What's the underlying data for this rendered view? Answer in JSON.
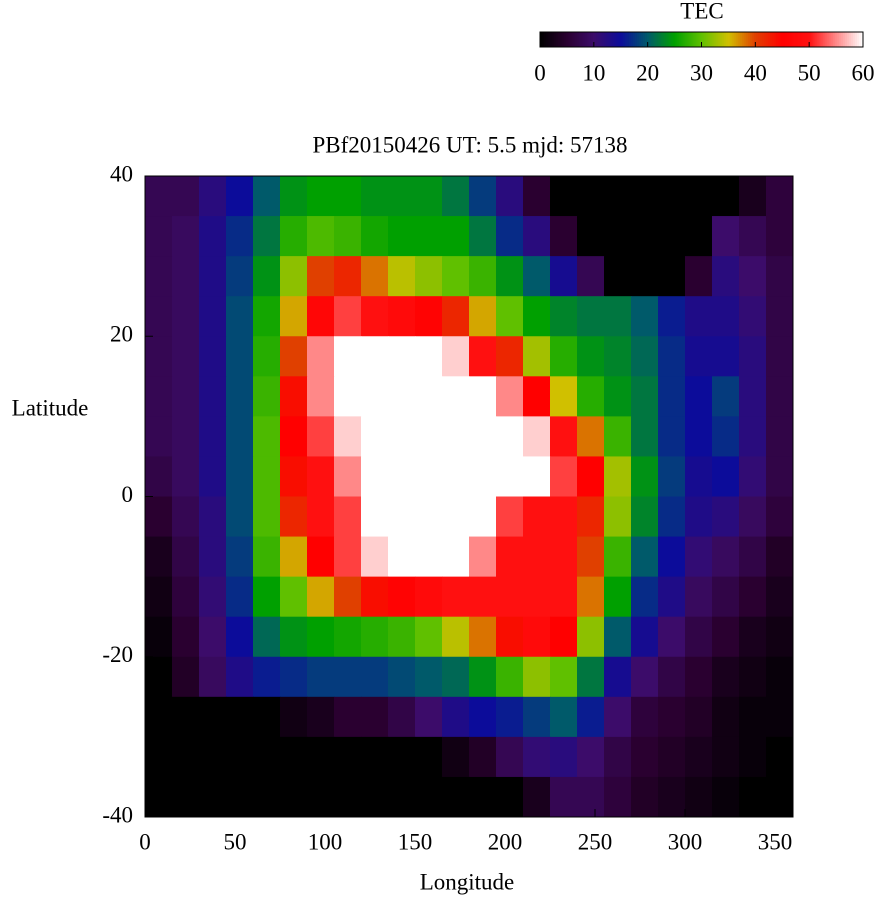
{
  "chart_data": {
    "type": "heatmap",
    "title": "PBf20150426  UT: 5.5  mjd: 57138",
    "x_label": "Longitude",
    "y_label": "Latitude",
    "colorbar_label": "TEC",
    "x_edges": [
      0,
      15,
      30,
      45,
      60,
      75,
      90,
      105,
      120,
      135,
      150,
      165,
      180,
      195,
      210,
      225,
      240,
      255,
      270,
      285,
      300,
      315,
      330,
      345,
      360
    ],
    "y_edges": [
      40,
      35,
      30,
      25,
      20,
      15,
      10,
      5,
      0,
      -5,
      -10,
      -15,
      -20,
      -25,
      -30,
      -35,
      -40
    ],
    "xlim": [
      0,
      360
    ],
    "ylim": [
      -40,
      40
    ],
    "xticks": [
      0,
      50,
      100,
      150,
      200,
      250,
      300,
      350
    ],
    "yticks": [
      -40,
      -20,
      0,
      20,
      40
    ],
    "zlim": [
      0,
      60
    ],
    "zticks": [
      0,
      10,
      20,
      30,
      40,
      50,
      60
    ],
    "colormap": [
      "#000000",
      "#2a0030",
      "#3c0c6a",
      "#0c0c9a",
      "#005a6a",
      "#00a000",
      "#60c000",
      "#d0c000",
      "#e04000",
      "#ff0000",
      "#ff1010",
      "#ff8888",
      "#ffffff"
    ],
    "z": [
      [
        8,
        8,
        12,
        15,
        20,
        24,
        25,
        25,
        24,
        24,
        24,
        22,
        18,
        12,
        5,
        0,
        0,
        0,
        0,
        0,
        0,
        0,
        3,
        6
      ],
      [
        8,
        9,
        13,
        17,
        22,
        27,
        29,
        28,
        26,
        25,
        25,
        25,
        22,
        17,
        12,
        5,
        0,
        0,
        0,
        0,
        0,
        10,
        8,
        6
      ],
      [
        8,
        9,
        13,
        18,
        24,
        32,
        40,
        42,
        38,
        34,
        32,
        30,
        28,
        24,
        20,
        14,
        8,
        0,
        0,
        0,
        5,
        12,
        10,
        7
      ],
      [
        8,
        9,
        13,
        19,
        26,
        36,
        47,
        52,
        50,
        48,
        46,
        42,
        36,
        30,
        25,
        23,
        22,
        22,
        20,
        16,
        13,
        13,
        11,
        7
      ],
      [
        8,
        9,
        13,
        19,
        27,
        40,
        55,
        60,
        60,
        60,
        60,
        58,
        50,
        42,
        33,
        27,
        24,
        23,
        21,
        17,
        14,
        14,
        12,
        7
      ],
      [
        8,
        9,
        13,
        19,
        28,
        44,
        55,
        60,
        60,
        60,
        60,
        60,
        60,
        55,
        45,
        35,
        27,
        24,
        22,
        17,
        15,
        18,
        12,
        7
      ],
      [
        8,
        9,
        13,
        19,
        29,
        45,
        52,
        58,
        60,
        60,
        60,
        60,
        60,
        60,
        58,
        50,
        38,
        28,
        22,
        17,
        15,
        17,
        12,
        7
      ],
      [
        7,
        9,
        13,
        19,
        29,
        44,
        50,
        55,
        60,
        60,
        60,
        60,
        60,
        60,
        60,
        52,
        45,
        33,
        24,
        18,
        14,
        15,
        11,
        7
      ],
      [
        5,
        8,
        12,
        19,
        29,
        42,
        50,
        52,
        60,
        60,
        60,
        60,
        60,
        52,
        50,
        50,
        42,
        32,
        23,
        17,
        13,
        12,
        9,
        6
      ],
      [
        3,
        7,
        12,
        18,
        28,
        36,
        45,
        52,
        58,
        60,
        60,
        60,
        55,
        50,
        50,
        50,
        40,
        28,
        20,
        15,
        11,
        9,
        7,
        4
      ],
      [
        2,
        6,
        11,
        17,
        25,
        30,
        36,
        40,
        44,
        46,
        48,
        50,
        50,
        50,
        50,
        50,
        38,
        25,
        17,
        13,
        9,
        7,
        5,
        3
      ],
      [
        1,
        5,
        10,
        15,
        21,
        24,
        25,
        26,
        27,
        28,
        30,
        34,
        38,
        44,
        48,
        45,
        32,
        20,
        14,
        10,
        7,
        5,
        3,
        2
      ],
      [
        0,
        4,
        9,
        13,
        16,
        17,
        18,
        18,
        18,
        19,
        20,
        21,
        24,
        28,
        32,
        30,
        22,
        14,
        10,
        7,
        5,
        3,
        2,
        1
      ],
      [
        0,
        0,
        0,
        0,
        0,
        2,
        3,
        5,
        5,
        7,
        10,
        13,
        15,
        16,
        18,
        20,
        16,
        10,
        6,
        5,
        4,
        2,
        1,
        1
      ],
      [
        0,
        0,
        0,
        0,
        0,
        0,
        0,
        0,
        0,
        0,
        0,
        2,
        4,
        8,
        11,
        12,
        10,
        7,
        5,
        4,
        3,
        2,
        1,
        0
      ],
      [
        0,
        0,
        0,
        0,
        0,
        0,
        0,
        0,
        0,
        0,
        0,
        0,
        0,
        0,
        3,
        8,
        8,
        6,
        4,
        3,
        2,
        1,
        0,
        0
      ]
    ]
  }
}
